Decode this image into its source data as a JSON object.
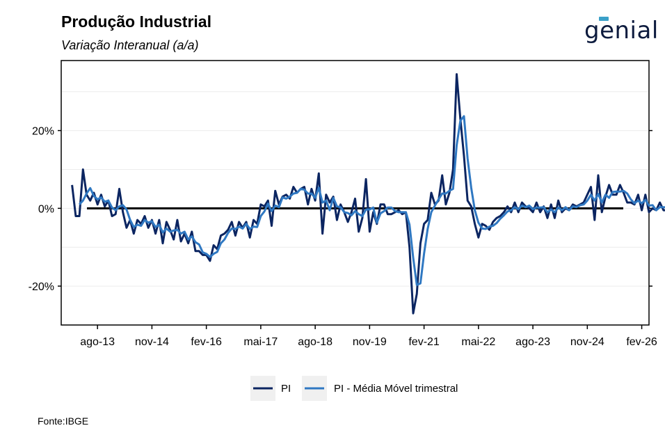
{
  "header": {
    "title": "Produção Industrial",
    "subtitle": "Variação Interanual (a/a)",
    "logo_text": "genial"
  },
  "footer": {
    "source": "Fonte:IBGE"
  },
  "colors": {
    "pi": "#0b2561",
    "mm3": "#2f78c2",
    "zero": "#000000",
    "grid": "#ececec"
  },
  "chart_data": {
    "type": "line",
    "title": "Produção Industrial",
    "subtitle": "Variação Interanual (a/a)",
    "xlabel": "",
    "ylabel": "",
    "ylim": [
      -30,
      38
    ],
    "yticks": [
      -20,
      0,
      20
    ],
    "ytick_labels": [
      "-20%",
      "0%",
      "20%"
    ],
    "xlim": [
      "2012-10",
      "2026-04"
    ],
    "xticks": [
      "2013-08",
      "2014-11",
      "2016-02",
      "2017-05",
      "2018-08",
      "2019-11",
      "2021-02",
      "2022-05",
      "2023-08",
      "2024-11",
      "2026-02"
    ],
    "xtick_labels": [
      "ago-13",
      "nov-14",
      "fev-16",
      "mai-17",
      "ago-18",
      "nov-19",
      "fev-21",
      "mai-22",
      "ago-23",
      "nov-24",
      "fev-26"
    ],
    "grid": true,
    "legend_position": "bottom",
    "legend": [
      "PI",
      "PI - Média Móvel trimestral"
    ],
    "start": "2013-01",
    "series": [
      {
        "name": "PI",
        "values": [
          6.0,
          -2.0,
          -2.0,
          10.0,
          3.5,
          2.0,
          4.0,
          1.0,
          3.5,
          0.5,
          2.0,
          -2.0,
          -1.5,
          5.0,
          -1.0,
          -5.0,
          -3.0,
          -6.5,
          -3.0,
          -4.0,
          -2.0,
          -5.0,
          -3.0,
          -6.5,
          -3.0,
          -9.0,
          -3.5,
          -5.5,
          -8.0,
          -3.0,
          -8.5,
          -6.5,
          -9.0,
          -6.0,
          -11.0,
          -11.0,
          -12.0,
          -12.0,
          -13.5,
          -9.5,
          -10.5,
          -7.0,
          -6.5,
          -5.5,
          -3.5,
          -7.0,
          -3.5,
          -5.0,
          -3.5,
          -7.5,
          -3.0,
          -4.0,
          1.0,
          0.5,
          2.0,
          -4.5,
          4.5,
          1.0,
          3.0,
          3.5,
          2.5,
          5.5,
          4.0,
          5.0,
          5.5,
          1.0,
          5.0,
          2.0,
          9.0,
          -6.5,
          3.5,
          1.5,
          3.0,
          -3.0,
          1.0,
          -1.0,
          -3.5,
          -1.0,
          2.5,
          -6.0,
          -2.5,
          7.5,
          -6.0,
          -1.0,
          -4.0,
          1.0,
          1.0,
          -1.5,
          -1.5,
          -1.0,
          -0.5,
          -1.5,
          -1.0,
          -10.0,
          -27.0,
          -22.0,
          -9.0,
          -4.0,
          -3.0,
          4.0,
          1.0,
          2.0,
          8.5,
          1.0,
          4.0,
          10.0,
          34.5,
          23.0,
          13.5,
          2.0,
          0.5,
          -4.0,
          -7.5,
          -4.0,
          -4.5,
          -5.5,
          -3.5,
          -2.5,
          -2.0,
          -1.0,
          0.5,
          -1.0,
          1.5,
          -1.0,
          1.5,
          0.5,
          0.0,
          -1.0,
          1.5,
          -1.0,
          0.5,
          -2.5,
          1.0,
          -2.5,
          2.0,
          -1.0,
          0.0,
          -0.5,
          1.0,
          0.5,
          1.0,
          1.5,
          3.5,
          5.5,
          -3.0,
          8.5,
          -1.0,
          3.0,
          6.0,
          3.5,
          3.5,
          6.0,
          4.0,
          1.5,
          1.5,
          1.0,
          3.5,
          -0.5,
          3.5,
          -1.0,
          0.0,
          -0.5,
          1.5,
          -0.5,
          -0.5,
          -1.5,
          0.0,
          2.0,
          -1.0,
          -1.0,
          0.0
        ]
      },
      {
        "name": "PI - Média Móvel trimestral",
        "values": [
          null,
          null,
          1.0,
          2.0,
          3.8,
          5.2,
          3.2,
          2.3,
          2.8,
          1.7,
          2.0,
          0.2,
          -0.5,
          0.5,
          0.8,
          -0.3,
          -3.0,
          -4.8,
          -4.2,
          -4.5,
          -3.0,
          -3.7,
          -3.3,
          -4.8,
          -4.2,
          -6.2,
          -5.2,
          -6.0,
          -5.7,
          -5.5,
          -6.5,
          -6.0,
          -8.0,
          -7.2,
          -8.7,
          -9.3,
          -11.3,
          -11.7,
          -12.5,
          -11.7,
          -11.2,
          -9.0,
          -8.0,
          -6.3,
          -5.2,
          -5.3,
          -4.7,
          -5.2,
          -4.0,
          -5.3,
          -4.7,
          -4.8,
          -2.0,
          -0.8,
          1.2,
          -0.7,
          0.7,
          0.3,
          2.8,
          2.5,
          3.0,
          3.8,
          4.0,
          5.0,
          4.8,
          3.8,
          3.8,
          2.7,
          5.3,
          1.5,
          2.0,
          -0.5,
          2.7,
          0.5,
          0.3,
          -1.0,
          -1.2,
          -1.8,
          -0.7,
          -1.5,
          -2.0,
          -0.3,
          -0.3,
          0.2,
          -3.7,
          -1.3,
          -0.7,
          0.2,
          0.2,
          -0.7,
          -1.0,
          -1.0,
          -1.0,
          -4.2,
          -12.7,
          -19.7,
          -19.3,
          -11.7,
          -5.3,
          -1.0,
          0.7,
          2.3,
          3.8,
          3.8,
          4.5,
          5.0,
          16.2,
          22.5,
          23.7,
          12.8,
          5.3,
          -0.5,
          -3.7,
          -5.2,
          -5.3,
          -4.7,
          -4.5,
          -3.8,
          -2.7,
          -1.8,
          -0.8,
          -0.5,
          0.3,
          -0.2,
          0.7,
          0.3,
          0.7,
          -0.2,
          0.2,
          0.2,
          0.3,
          -1.0,
          -0.3,
          -1.0,
          0.2,
          -0.5,
          0.3,
          -0.5,
          0.5,
          0.3,
          0.8,
          1.0,
          2.0,
          3.5,
          2.0,
          3.7,
          1.5,
          3.5,
          2.7,
          4.2,
          4.3,
          4.3,
          4.5,
          3.8,
          2.3,
          1.3,
          2.0,
          1.3,
          2.2,
          0.7,
          0.8,
          -0.5,
          0.3,
          0.3,
          0.2,
          -0.8,
          -0.7,
          0.2,
          0.3,
          0.0,
          -0.7
        ]
      }
    ]
  }
}
